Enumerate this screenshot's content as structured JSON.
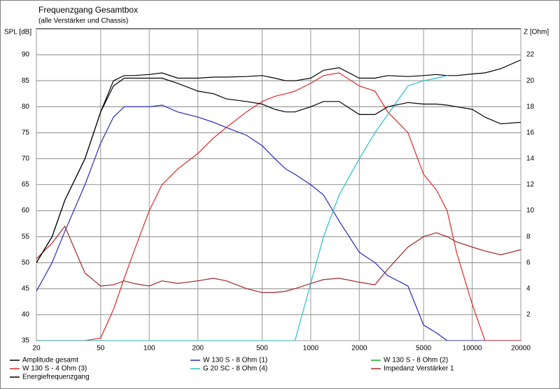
{
  "chart_data": {
    "type": "line",
    "title": "Frequenzgang Gesamtbox",
    "subtitle": "(alle Verstärker und Chassis)",
    "y_label": "SPL [dB]",
    "y2_label": "Z [Ohm]",
    "x_log": true,
    "grid": true,
    "legend": "bottom",
    "x": [
      20,
      25,
      30,
      40,
      50,
      60,
      70,
      80,
      100,
      120,
      150,
      200,
      250,
      300,
      400,
      500,
      600,
      700,
      800,
      1000,
      1200,
      1500,
      2000,
      2500,
      3000,
      4000,
      5000,
      6000,
      7000,
      8000,
      10000,
      12000,
      15000,
      20000
    ],
    "xlim": [
      20,
      20000
    ],
    "xticks": [
      20,
      50,
      100,
      200,
      500,
      1000,
      2000,
      5000,
      10000,
      20000
    ],
    "ylim": [
      35,
      95
    ],
    "yticks": [
      35,
      40,
      45,
      50,
      55,
      60,
      65,
      70,
      75,
      80,
      85,
      90
    ],
    "y2lim": [
      0,
      24
    ],
    "y2ticks": [
      2,
      4,
      6,
      8,
      10,
      12,
      14,
      16,
      18,
      20,
      22
    ],
    "series": [
      {
        "name": "Amplitude gesamt",
        "color": "#000000",
        "values": [
          50,
          55,
          62,
          70,
          79,
          85,
          86,
          86,
          86.2,
          86.5,
          85.5,
          85.5,
          85.7,
          85.7,
          85.8,
          86,
          85.5,
          85,
          85,
          85.5,
          87,
          87.5,
          85.5,
          85.5,
          86,
          85.8,
          86,
          86.2,
          86,
          86,
          86.3,
          86.5,
          87.3,
          89
        ]
      },
      {
        "name": "W 130 S - 8 Ohm (1)",
        "color": "#2828c0",
        "values": [
          44.5,
          50,
          56,
          65,
          73,
          78,
          80,
          80,
          80,
          80.3,
          79,
          78,
          77,
          76,
          74.5,
          72.5,
          70,
          68,
          67,
          65,
          63,
          58,
          52,
          50,
          47.5,
          45.5,
          38,
          36.5,
          35,
          35,
          35,
          35,
          35,
          35
        ]
      },
      {
        "name": "W 130 S - 8 Ohm (2)",
        "color": "#20b020",
        "values": [
          null,
          null,
          null,
          null,
          null,
          null,
          null,
          null,
          null,
          null,
          null,
          null,
          null,
          null,
          null,
          null,
          null,
          null,
          null,
          null,
          null,
          null,
          null,
          null,
          null,
          null,
          null,
          null,
          null,
          null,
          null,
          null,
          null,
          null
        ]
      },
      {
        "name": "W 130 S - 4 Ohm (3)",
        "color": "#e02828",
        "values": [
          35,
          35,
          35,
          35,
          35.5,
          41,
          47,
          52,
          60,
          65,
          68,
          71,
          74,
          76,
          79,
          81,
          82,
          82.5,
          83,
          84.5,
          86,
          86.5,
          84,
          83,
          79,
          75,
          67,
          64,
          60,
          52,
          42,
          35,
          35,
          35
        ]
      },
      {
        "name": "G 20 SC - 8 Ohm (4)",
        "color": "#28c0c8",
        "values": [
          35,
          35,
          35,
          35,
          35,
          35,
          35,
          35,
          35,
          35,
          35,
          35,
          35,
          35,
          35,
          35,
          35,
          35,
          35,
          46,
          55,
          63,
          70,
          75,
          78.5,
          84,
          85,
          85.5,
          86,
          null,
          null,
          null,
          null,
          null
        ]
      },
      {
        "name": "Impedanz Verstärker 1",
        "color": "#a02828",
        "axis": "y2",
        "values": [
          6.3,
          7.5,
          8.8,
          5.2,
          4.2,
          4.3,
          4.6,
          4.4,
          4.2,
          4.6,
          4.4,
          4.6,
          4.8,
          4.6,
          4.0,
          3.7,
          3.7,
          3.8,
          4.0,
          4.4,
          4.7,
          4.8,
          4.5,
          4.3,
          5.5,
          7.2,
          8.0,
          8.3,
          8.0,
          7.6,
          7.2,
          6.9,
          6.6,
          7.0
        ]
      },
      {
        "name": "Energiefrequenzgang",
        "color": "#000000",
        "values": [
          50,
          55,
          62,
          70,
          79,
          84,
          85.5,
          85.5,
          85.5,
          85.5,
          84.5,
          83,
          82.5,
          81.5,
          81,
          80.5,
          79.5,
          79,
          79,
          80,
          81,
          81,
          78.5,
          78.5,
          80,
          80.8,
          80.5,
          80.5,
          80.3,
          80,
          79.5,
          78,
          76.7,
          77
        ]
      }
    ]
  }
}
